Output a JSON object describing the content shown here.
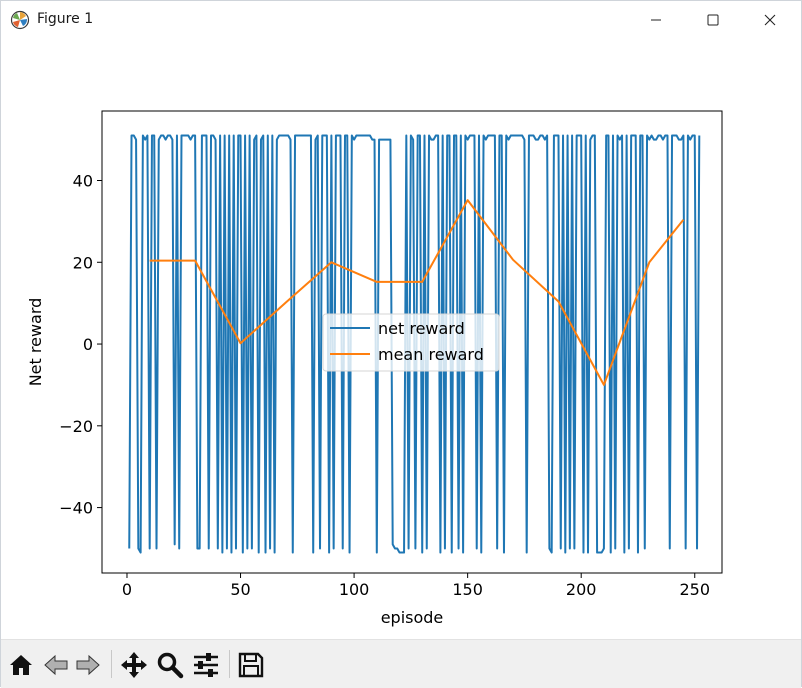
{
  "window": {
    "title": "Figure 1"
  },
  "toolbar": {
    "buttons": [
      "home-icon",
      "back-arrow-icon",
      "forward-arrow-icon",
      "move-icon",
      "zoom-icon",
      "configure-icon",
      "save-icon"
    ]
  },
  "chart_data": {
    "type": "line",
    "title": "",
    "xlabel": "episode",
    "ylabel": "Net reward",
    "xlim": [
      -11,
      262
    ],
    "ylim": [
      -56,
      57
    ],
    "xticks": [
      0,
      50,
      100,
      150,
      200,
      250
    ],
    "yticks": [
      -40,
      -20,
      0,
      20,
      40
    ],
    "xtick_labels": [
      "0",
      "50",
      "100",
      "150",
      "200",
      "250"
    ],
    "ytick_labels": [
      "−40",
      "−20",
      "0",
      "20",
      "40"
    ],
    "grid": false,
    "legend": {
      "placement": "center",
      "entries": [
        "net reward",
        "mean reward"
      ]
    },
    "series": [
      {
        "name": "net reward",
        "color": "#1f77b4",
        "x_start": 1,
        "values": [
          -50,
          51,
          51,
          50,
          -50,
          -51,
          51,
          50,
          51,
          -50,
          51,
          51,
          -50,
          50,
          51,
          51,
          50,
          51,
          51,
          50,
          -49,
          51,
          -50,
          51,
          51,
          51,
          51,
          50,
          51,
          51,
          -50,
          -50,
          51,
          51,
          51,
          -50,
          51,
          51,
          50,
          -50,
          51,
          -51,
          51,
          -50,
          51,
          -51,
          51,
          -50,
          51,
          51,
          -51,
          51,
          -50,
          51,
          -50,
          50,
          51,
          -51,
          50,
          51,
          -51,
          51,
          -50,
          51,
          -51,
          50,
          51,
          51,
          51,
          51,
          51,
          50,
          -51,
          51,
          51,
          51,
          51,
          51,
          51,
          51,
          51,
          -51,
          50,
          51,
          -50,
          51,
          51,
          51,
          -51,
          51,
          -50,
          51,
          51,
          51,
          -50,
          51,
          51,
          -51,
          51,
          50,
          51,
          51,
          51,
          51,
          51,
          51,
          51,
          50,
          50,
          -51,
          50,
          50,
          50,
          50,
          50,
          50,
          -49,
          -50,
          -50,
          -51,
          -51,
          -51,
          51,
          -50,
          51,
          50,
          -50,
          51,
          51,
          -51,
          51,
          -50,
          51,
          50,
          50,
          51,
          51,
          -51,
          51,
          -50,
          51,
          51,
          -51,
          51,
          51,
          -50,
          51,
          -51,
          51,
          50,
          51,
          51,
          51,
          -50,
          51,
          -51,
          51,
          50,
          51,
          51,
          51,
          51,
          -50,
          51,
          51,
          -51,
          51,
          50,
          51,
          51,
          51,
          51,
          51,
          51,
          50,
          -51,
          51,
          51,
          51,
          50,
          50,
          51,
          51,
          50,
          51,
          -50,
          -51,
          51,
          51,
          51,
          -50,
          51,
          -51,
          51,
          -50,
          51,
          -50,
          51,
          51,
          51,
          -51,
          51,
          -51,
          50,
          51,
          51,
          -51,
          -51,
          -51,
          -50,
          51,
          51,
          -51,
          51,
          -50,
          51,
          50,
          51,
          -51,
          51,
          -50,
          51,
          51,
          51,
          -51,
          51,
          51,
          -50,
          51,
          50,
          51,
          50,
          50,
          51,
          51,
          50,
          51,
          51,
          -50,
          51,
          51,
          51,
          50,
          50,
          51,
          -50,
          51,
          50,
          51,
          51,
          -50,
          51
        ],
        "values_note": ""
      },
      {
        "name": "mean reward",
        "color": "#ff7f0e",
        "x": [
          10,
          30,
          50,
          70,
          90,
          110,
          130,
          150,
          170,
          190,
          210,
          230,
          245
        ],
        "values": [
          20.4,
          20.4,
          0.2,
          10.2,
          20,
          15.2,
          15.2,
          35.2,
          20.6,
          10.4,
          -10,
          20,
          30.4
        ]
      }
    ]
  }
}
